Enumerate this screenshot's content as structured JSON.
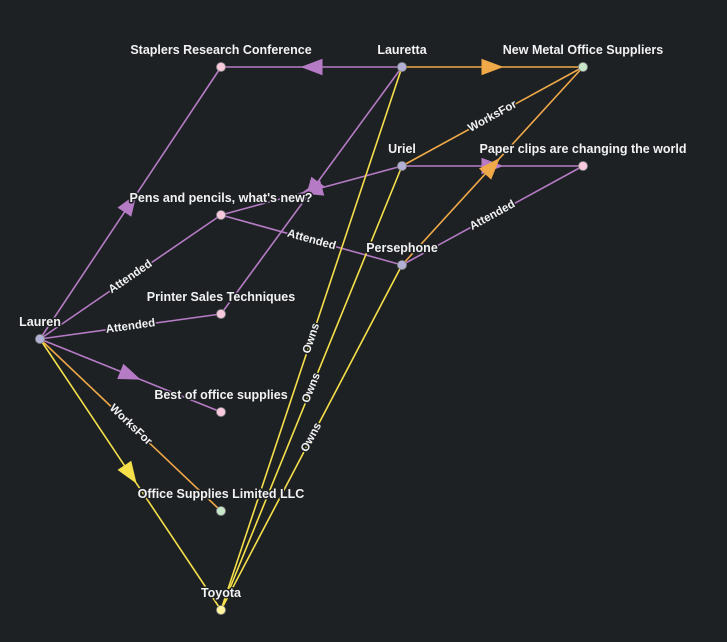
{
  "colors": {
    "background": "#1e2124",
    "person": "#b3b0d6",
    "event": "#f8c8dc",
    "company": "#c8e6c9",
    "car": "#fff59d",
    "attended_edge": "#b57bc5",
    "worksfor_edge": "#f0a948",
    "owns_edge": "#f5e04a"
  },
  "nodes": [
    {
      "id": "lauren",
      "label": "Lauren",
      "kind": "person"
    },
    {
      "id": "staplers",
      "label": "Staplers Research Conference",
      "kind": "event"
    },
    {
      "id": "lauretta",
      "label": "Lauretta",
      "kind": "person"
    },
    {
      "id": "newmetal",
      "label": "New Metal Office Suppliers",
      "kind": "company"
    },
    {
      "id": "uriel",
      "label": "Uriel",
      "kind": "person"
    },
    {
      "id": "paperclips",
      "label": "Paper clips are changing the world",
      "kind": "event"
    },
    {
      "id": "pens",
      "label": "Pens and pencils, what's new?",
      "kind": "event"
    },
    {
      "id": "persephone",
      "label": "Persephone",
      "kind": "person"
    },
    {
      "id": "printer",
      "label": "Printer Sales Techniques",
      "kind": "event"
    },
    {
      "id": "best",
      "label": "Best of office supplies",
      "kind": "event"
    },
    {
      "id": "osl",
      "label": "Office Supplies Limited LLC",
      "kind": "company"
    },
    {
      "id": "toyota",
      "label": "Toyota",
      "kind": "car"
    }
  ],
  "edges": [
    {
      "from": "lauretta",
      "to": "staplers",
      "type": "attended",
      "label": ""
    },
    {
      "from": "lauretta",
      "to": "newmetal",
      "type": "worksfor",
      "label": ""
    },
    {
      "from": "lauretta",
      "to": "printer",
      "type": "attended",
      "label": ""
    },
    {
      "from": "uriel",
      "to": "pens",
      "type": "attended",
      "label": ""
    },
    {
      "from": "uriel",
      "to": "paperclips",
      "type": "attended",
      "label": ""
    },
    {
      "from": "uriel",
      "to": "newmetal",
      "type": "worksfor",
      "label": "WorksFor"
    },
    {
      "from": "persephone",
      "to": "newmetal",
      "type": "worksfor",
      "label": ""
    },
    {
      "from": "persephone",
      "to": "paperclips",
      "type": "attended",
      "label": "Attended"
    },
    {
      "from": "persephone",
      "to": "pens",
      "type": "attended",
      "label": "Attended"
    },
    {
      "from": "lauren",
      "to": "staplers",
      "type": "attended",
      "label": ""
    },
    {
      "from": "lauren",
      "to": "pens",
      "type": "attended",
      "label": "Attended"
    },
    {
      "from": "lauren",
      "to": "printer",
      "type": "attended",
      "label": "Attended"
    },
    {
      "from": "lauren",
      "to": "best",
      "type": "attended",
      "label": ""
    },
    {
      "from": "lauren",
      "to": "osl",
      "type": "worksfor",
      "label": "WorksFor"
    },
    {
      "from": "lauren",
      "to": "toyota",
      "type": "owns",
      "label": ""
    },
    {
      "from": "toyota",
      "to": "lauretta",
      "type": "owns",
      "label": "Owns"
    },
    {
      "from": "toyota",
      "to": "uriel",
      "type": "owns",
      "label": "Owns"
    },
    {
      "from": "toyota",
      "to": "persephone",
      "type": "owns",
      "label": "Owns"
    }
  ]
}
